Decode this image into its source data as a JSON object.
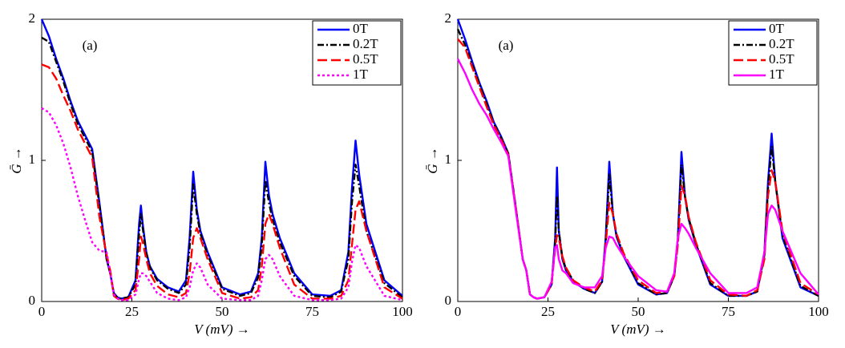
{
  "chart_data": [
    {
      "type": "line",
      "annotation": "(a)",
      "x_label": "V (mV) →",
      "y_label": "Ḡ →",
      "x": [
        0,
        2,
        4,
        6,
        8,
        10,
        12,
        14,
        16,
        18,
        19,
        20,
        21,
        22,
        24,
        26,
        27,
        27.5,
        28,
        29,
        30,
        32,
        35,
        38,
        40,
        41,
        42,
        43,
        44,
        46,
        50,
        55,
        58,
        60,
        61,
        62,
        63,
        64,
        66,
        70,
        75,
        80,
        83,
        85,
        86,
        87,
        88,
        90,
        95,
        100
      ],
      "xlim": [
        0,
        100
      ],
      "xticks": [
        0,
        25,
        50,
        75,
        100
      ],
      "ylim": [
        0,
        2
      ],
      "yticks": [
        0,
        1,
        2
      ],
      "legend": "upper right",
      "series": [
        {
          "name": "0T",
          "color": "#0000ff",
          "dash": "none",
          "values": [
            2.0,
            1.88,
            1.72,
            1.58,
            1.42,
            1.28,
            1.18,
            1.08,
            0.7,
            0.3,
            0.2,
            0.06,
            0.03,
            0.02,
            0.03,
            0.15,
            0.55,
            0.68,
            0.55,
            0.35,
            0.25,
            0.16,
            0.1,
            0.07,
            0.15,
            0.45,
            0.92,
            0.65,
            0.5,
            0.35,
            0.1,
            0.05,
            0.07,
            0.2,
            0.45,
            0.99,
            0.75,
            0.62,
            0.45,
            0.2,
            0.05,
            0.04,
            0.08,
            0.35,
            0.8,
            1.14,
            0.9,
            0.55,
            0.15,
            0.04
          ]
        },
        {
          "name": "0.2T",
          "color": "#000000",
          "dash": "8 3 2 3",
          "values": [
            1.87,
            1.84,
            1.7,
            1.56,
            1.4,
            1.26,
            1.16,
            1.06,
            0.68,
            0.3,
            0.2,
            0.05,
            0.03,
            0.02,
            0.03,
            0.12,
            0.48,
            0.62,
            0.52,
            0.34,
            0.24,
            0.15,
            0.09,
            0.06,
            0.12,
            0.38,
            0.83,
            0.62,
            0.48,
            0.33,
            0.09,
            0.04,
            0.06,
            0.17,
            0.4,
            0.86,
            0.7,
            0.58,
            0.42,
            0.18,
            0.04,
            0.03,
            0.07,
            0.3,
            0.7,
            0.97,
            0.82,
            0.5,
            0.13,
            0.03
          ]
        },
        {
          "name": "0.5T",
          "color": "#ff0000",
          "dash": "12 5",
          "values": [
            1.68,
            1.66,
            1.58,
            1.46,
            1.35,
            1.22,
            1.12,
            1.02,
            0.6,
            0.33,
            0.22,
            0.04,
            0.02,
            0.01,
            0.02,
            0.08,
            0.3,
            0.46,
            0.42,
            0.3,
            0.2,
            0.11,
            0.05,
            0.03,
            0.06,
            0.2,
            0.45,
            0.52,
            0.45,
            0.3,
            0.06,
            0.02,
            0.03,
            0.08,
            0.25,
            0.55,
            0.62,
            0.55,
            0.38,
            0.12,
            0.02,
            0.02,
            0.04,
            0.15,
            0.4,
            0.65,
            0.71,
            0.5,
            0.1,
            0.02
          ]
        },
        {
          "name": "1T",
          "color": "#ff00ff",
          "dash": "3 3",
          "values": [
            1.37,
            1.34,
            1.25,
            1.12,
            0.95,
            0.75,
            0.58,
            0.42,
            0.36,
            0.35,
            0.2,
            0.05,
            0.02,
            0.01,
            0.01,
            0.05,
            0.16,
            0.2,
            0.2,
            0.18,
            0.14,
            0.06,
            0.02,
            0.01,
            0.03,
            0.1,
            0.22,
            0.27,
            0.24,
            0.12,
            0.02,
            0.01,
            0.01,
            0.04,
            0.15,
            0.3,
            0.33,
            0.3,
            0.18,
            0.04,
            0.01,
            0.01,
            0.02,
            0.1,
            0.28,
            0.4,
            0.38,
            0.25,
            0.04,
            0.01
          ]
        }
      ]
    },
    {
      "type": "line",
      "annotation": "(a)",
      "x_label": "V (mV) →",
      "y_label": "Ḡ →",
      "x": [
        0,
        2,
        4,
        6,
        8,
        10,
        12,
        14,
        16,
        18,
        19,
        20,
        21,
        22,
        24,
        26,
        27,
        27.5,
        28,
        29,
        30,
        32,
        35,
        38,
        40,
        41,
        42,
        43,
        44,
        46,
        50,
        55,
        58,
        60,
        61,
        62,
        63,
        64,
        66,
        70,
        75,
        80,
        83,
        85,
        86,
        87,
        88,
        90,
        95,
        100
      ],
      "xlim": [
        0,
        100
      ],
      "xticks": [
        0,
        25,
        50,
        75,
        100
      ],
      "ylim": [
        0,
        2
      ],
      "yticks": [
        0,
        1,
        2
      ],
      "legend": "upper right",
      "series": [
        {
          "name": "0T",
          "color": "#0000ff",
          "dash": "none",
          "values": [
            2.0,
            1.86,
            1.7,
            1.55,
            1.42,
            1.27,
            1.17,
            1.05,
            0.68,
            0.3,
            0.22,
            0.05,
            0.03,
            0.02,
            0.03,
            0.12,
            0.45,
            0.95,
            0.5,
            0.3,
            0.22,
            0.14,
            0.09,
            0.06,
            0.14,
            0.45,
            0.99,
            0.62,
            0.46,
            0.32,
            0.12,
            0.05,
            0.06,
            0.18,
            0.45,
            1.06,
            0.74,
            0.58,
            0.4,
            0.12,
            0.04,
            0.04,
            0.07,
            0.35,
            0.85,
            1.19,
            0.85,
            0.45,
            0.1,
            0.04
          ]
        },
        {
          "name": "0.2T",
          "color": "#000000",
          "dash": "8 3 2 3",
          "values": [
            1.93,
            1.82,
            1.68,
            1.54,
            1.4,
            1.26,
            1.16,
            1.05,
            0.68,
            0.3,
            0.22,
            0.05,
            0.03,
            0.02,
            0.03,
            0.12,
            0.42,
            0.75,
            0.5,
            0.31,
            0.23,
            0.15,
            0.09,
            0.06,
            0.14,
            0.42,
            0.9,
            0.62,
            0.47,
            0.33,
            0.13,
            0.05,
            0.06,
            0.18,
            0.42,
            0.97,
            0.74,
            0.59,
            0.41,
            0.13,
            0.04,
            0.04,
            0.07,
            0.33,
            0.8,
            1.1,
            0.85,
            0.47,
            0.11,
            0.04
          ]
        },
        {
          "name": "0.5T",
          "color": "#ff0000",
          "dash": "12 5",
          "values": [
            1.86,
            1.8,
            1.66,
            1.52,
            1.38,
            1.25,
            1.15,
            1.04,
            0.68,
            0.3,
            0.22,
            0.05,
            0.03,
            0.02,
            0.03,
            0.12,
            0.38,
            0.47,
            0.45,
            0.32,
            0.24,
            0.15,
            0.1,
            0.07,
            0.15,
            0.4,
            0.7,
            0.62,
            0.48,
            0.34,
            0.15,
            0.06,
            0.07,
            0.18,
            0.4,
            0.82,
            0.75,
            0.6,
            0.42,
            0.15,
            0.05,
            0.04,
            0.08,
            0.3,
            0.75,
            0.93,
            0.85,
            0.5,
            0.13,
            0.05
          ]
        },
        {
          "name": "1T",
          "color": "#ff00ff",
          "dash": "none",
          "values": [
            1.72,
            1.62,
            1.5,
            1.4,
            1.32,
            1.22,
            1.13,
            1.03,
            0.66,
            0.3,
            0.22,
            0.05,
            0.03,
            0.02,
            0.03,
            0.14,
            0.38,
            0.4,
            0.3,
            0.22,
            0.2,
            0.13,
            0.1,
            0.1,
            0.18,
            0.38,
            0.46,
            0.45,
            0.4,
            0.32,
            0.18,
            0.08,
            0.07,
            0.2,
            0.45,
            0.55,
            0.52,
            0.48,
            0.38,
            0.2,
            0.06,
            0.06,
            0.1,
            0.35,
            0.62,
            0.68,
            0.65,
            0.5,
            0.2,
            0.05
          ]
        }
      ]
    }
  ]
}
